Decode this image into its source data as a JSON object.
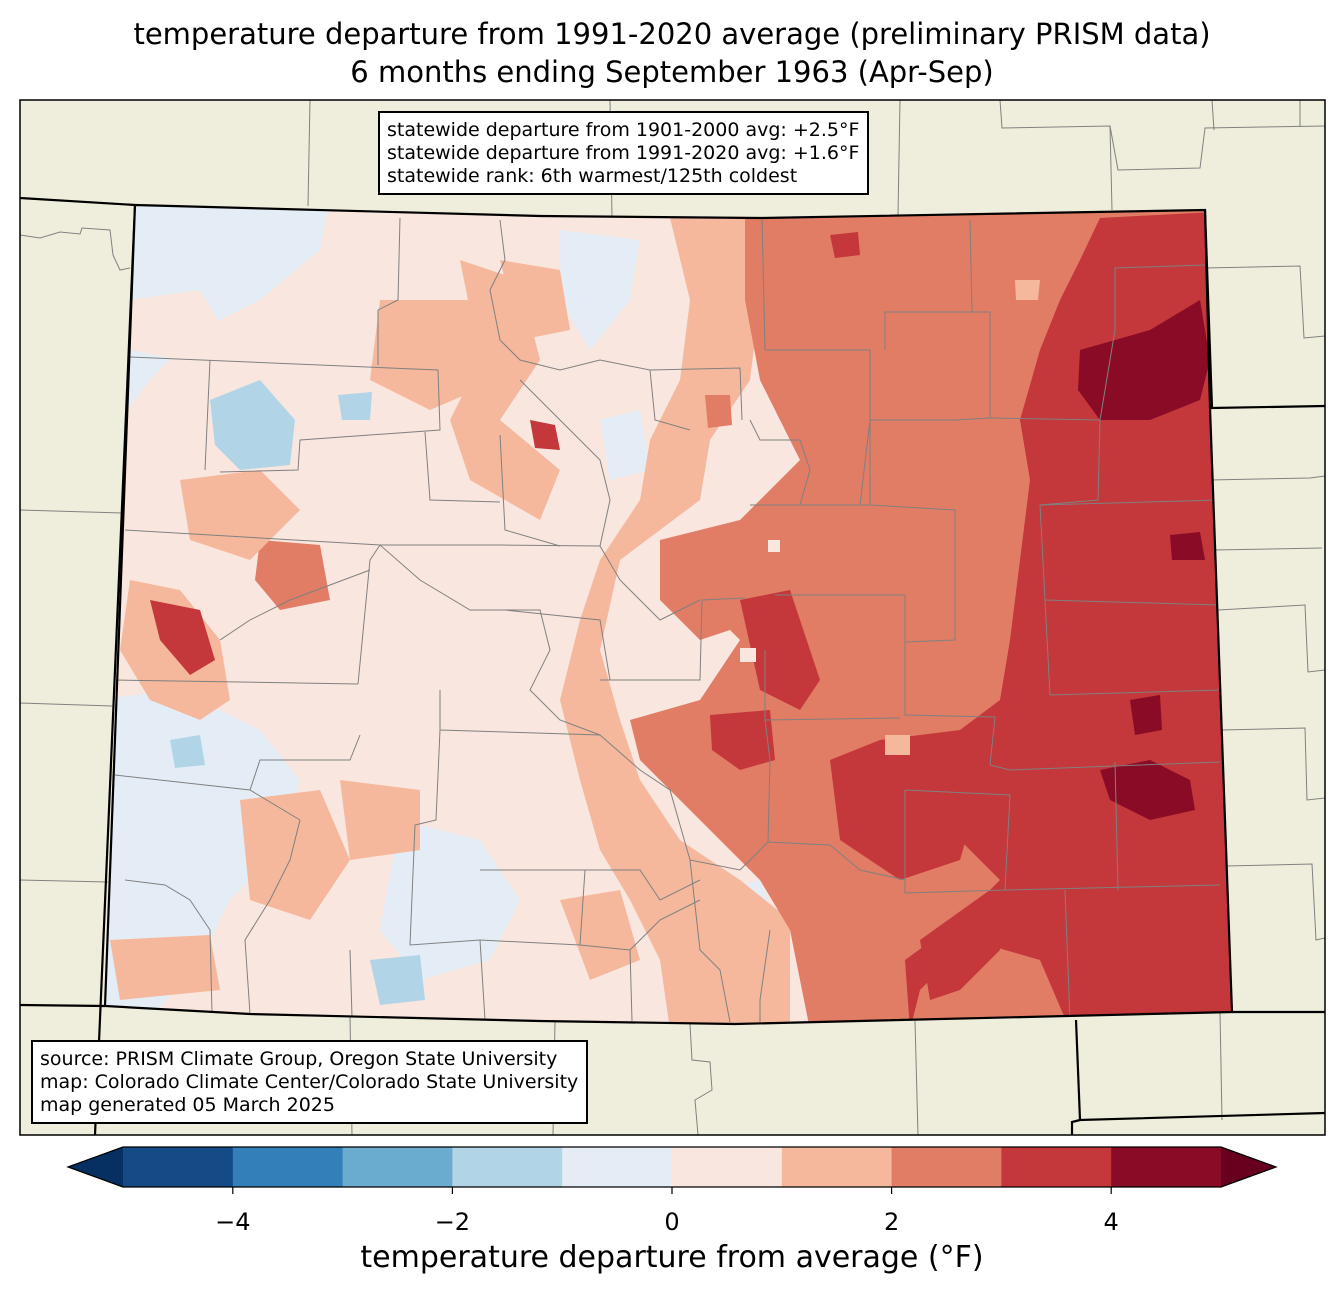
{
  "title": {
    "line1": "temperature departure from 1991-2020 average (preliminary PRISM data)",
    "line2": "6 months ending September 1963 (Apr-Sep)"
  },
  "stats_box": {
    "line1": "statewide departure from 1901-2000 avg: +2.5°F",
    "line2": "statewide departure from 1991-2020 avg: +1.6°F",
    "line3": "statewide rank: 6th warmest/125th coldest"
  },
  "source_box": {
    "line1": "source: PRISM Climate Group, Oregon State University",
    "line2": "map: Colorado Climate Center/Colorado State University",
    "line3": "map generated 05 March 2025"
  },
  "colorbar": {
    "label": "temperature departure from average (°F)",
    "ticks": [
      "−4",
      "−2",
      "0",
      "2",
      "4"
    ],
    "tick_values": [
      -4,
      -2,
      0,
      2,
      4
    ],
    "range": [
      -5,
      5
    ],
    "bins": [
      {
        "min": -5,
        "max": -4,
        "color": "#144a86"
      },
      {
        "min": -4,
        "max": -3,
        "color": "#327fba"
      },
      {
        "min": -3,
        "max": -2,
        "color": "#6aacd0"
      },
      {
        "min": -2,
        "max": -1,
        "color": "#b1d5e7"
      },
      {
        "min": -1,
        "max": 0,
        "color": "#e4edf5"
      },
      {
        "min": 0,
        "max": 1,
        "color": "#f9e6de"
      },
      {
        "min": 1,
        "max": 2,
        "color": "#f5b89d"
      },
      {
        "min": 2,
        "max": 3,
        "color": "#e17c65"
      },
      {
        "min": 3,
        "max": 4,
        "color": "#c4373a"
      },
      {
        "min": 4,
        "max": 5,
        "color": "#8a0b25"
      }
    ],
    "under_color": "#053061",
    "over_color": "#67001f"
  },
  "colors": {
    "land": "#efeedc",
    "border": "#000000",
    "county_lines": "#808080"
  }
}
